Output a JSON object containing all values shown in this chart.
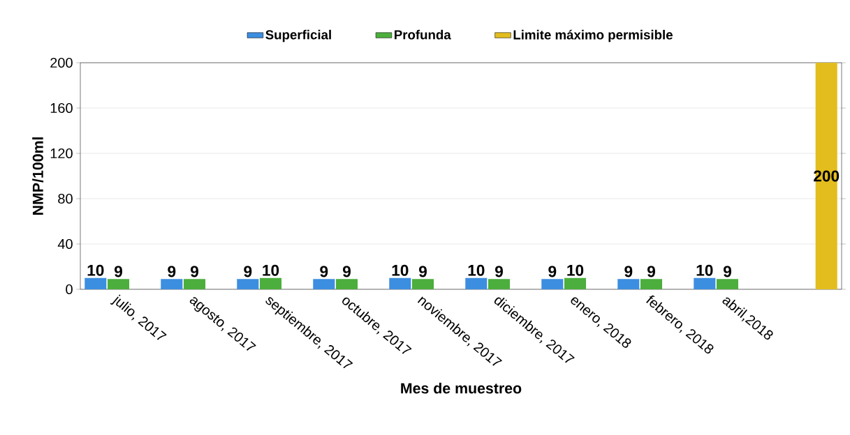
{
  "chart_data": {
    "type": "bar",
    "xlabel": "Mes de muestreo",
    "ylabel": "NMP/100ml",
    "categories": [
      "julio, 2017",
      "agosto, 2017",
      "septiembre, 2017",
      "octubre, 2017",
      "noviembre, 2017",
      "diciembre, 2017",
      "enero, 2018",
      "febrero, 2018",
      "abril,2018",
      null
    ],
    "series": [
      {
        "name": "Superficial",
        "color": "#3c8ee0",
        "values": [
          10,
          9,
          9,
          9,
          10,
          10,
          9,
          9,
          10,
          null
        ]
      },
      {
        "name": "Profunda",
        "color": "#4cae3c",
        "values": [
          9,
          9,
          10,
          9,
          9,
          9,
          10,
          9,
          9,
          null
        ]
      },
      {
        "name": "Limite máximo permisible",
        "color": "#e3bd1e",
        "values": [
          null,
          null,
          null,
          null,
          null,
          null,
          null,
          null,
          null,
          200
        ]
      }
    ],
    "ylim": [
      0,
      200
    ],
    "yticks": [
      0,
      40,
      80,
      120,
      160,
      200
    ],
    "grid": "y",
    "legend": "top",
    "data_labels": true
  }
}
